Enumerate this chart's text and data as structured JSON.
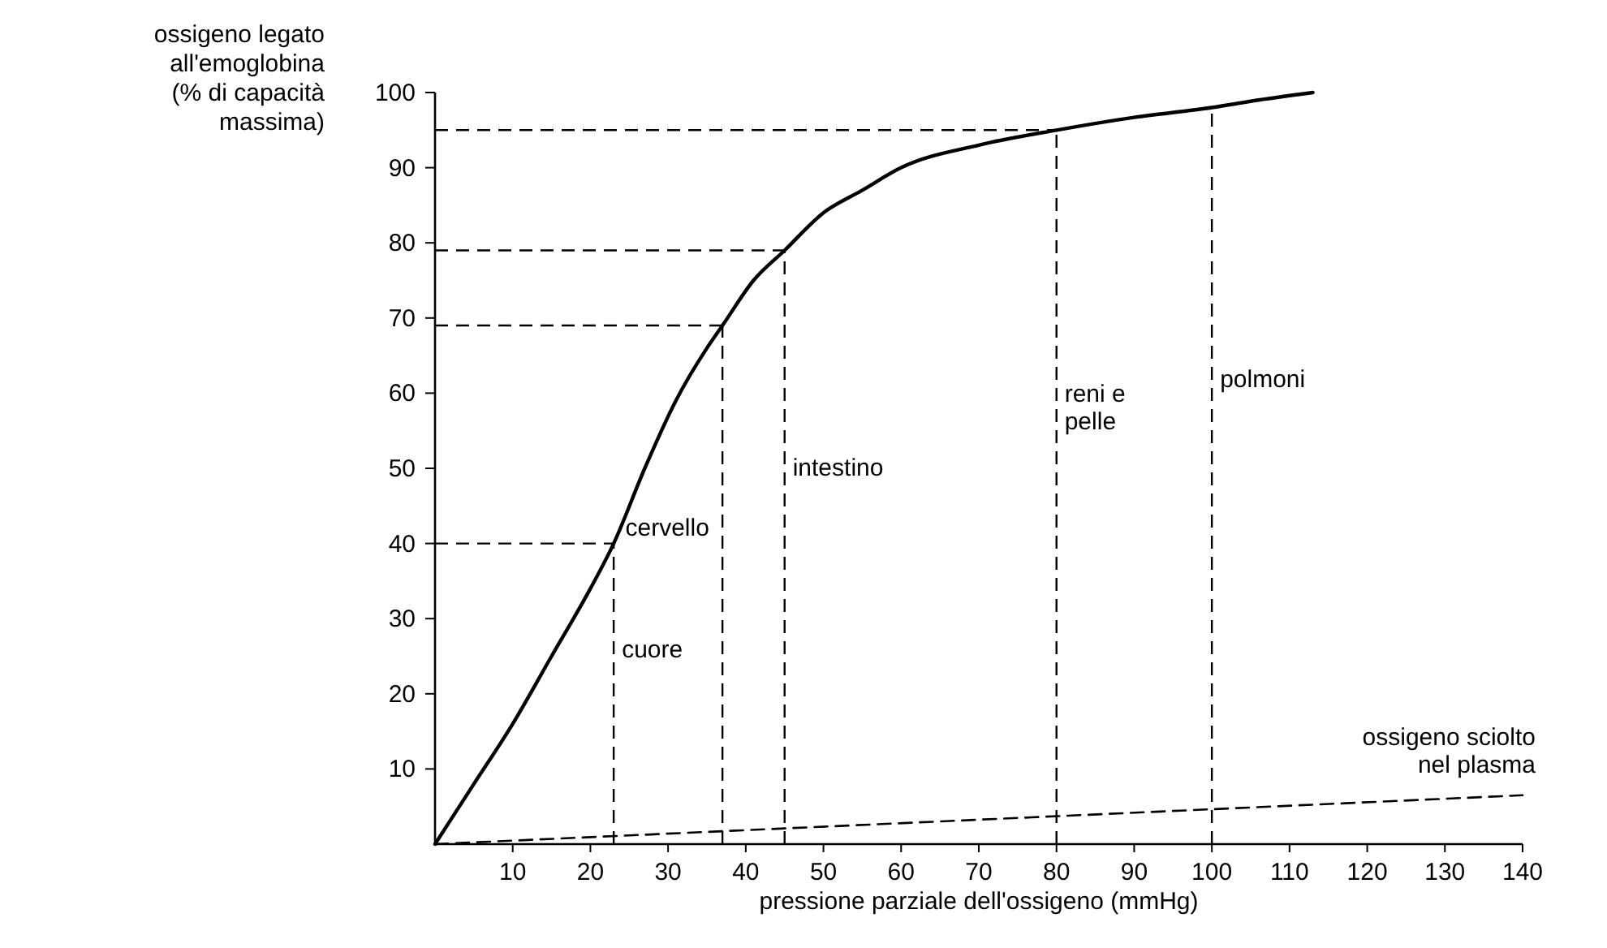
{
  "chart_data": {
    "type": "line",
    "ylabel": "ossigeno legato all'emoglobina (% di capacità massima)",
    "xlabel": "pressione parziale dell'ossigeno (mmHg)",
    "xlim": [
      0,
      140
    ],
    "xticks": [
      10,
      20,
      30,
      40,
      50,
      60,
      70,
      80,
      90,
      100,
      110,
      120,
      130,
      140
    ],
    "ylim": [
      0,
      100
    ],
    "yticks": [
      10,
      20,
      30,
      40,
      50,
      60,
      70,
      80,
      90,
      100
    ],
    "series": [
      {
        "color": "#000000",
        "line_style": "solid",
        "x": [
          0,
          5,
          10,
          15,
          20,
          23,
          27,
          31,
          35,
          37,
          41,
          45,
          50,
          55,
          60,
          70,
          80,
          90,
          100,
          106,
          113
        ],
        "values": [
          0,
          8,
          16,
          25,
          34,
          40,
          50,
          59,
          66,
          69,
          75,
          79,
          84,
          87,
          90,
          93,
          95,
          96.7,
          98,
          99,
          100
        ]
      },
      {
        "name": "ossigeno sciolto nel plasma",
        "color": "#000000",
        "line_style": "dashed",
        "x": [
          0,
          140
        ],
        "values": [
          0,
          6.5
        ]
      }
    ],
    "ref_lines": [
      {
        "axis": "x",
        "value": 23,
        "label": "cuore"
      },
      {
        "axis": "x",
        "value": 37
      },
      {
        "axis": "x",
        "value": 45,
        "label": "intestino"
      },
      {
        "axis": "x",
        "value": 80,
        "label": "reni e pelle"
      },
      {
        "axis": "x",
        "value": 100,
        "label": "polmoni"
      },
      {
        "axis": "y",
        "value": 40
      },
      {
        "axis": "y",
        "value": 69
      },
      {
        "axis": "y",
        "value": 79
      },
      {
        "axis": "y",
        "value": 95
      }
    ],
    "annotations": [
      {
        "text": "cervello",
        "x": 24.5,
        "y": 41
      }
    ],
    "grid": false
  }
}
